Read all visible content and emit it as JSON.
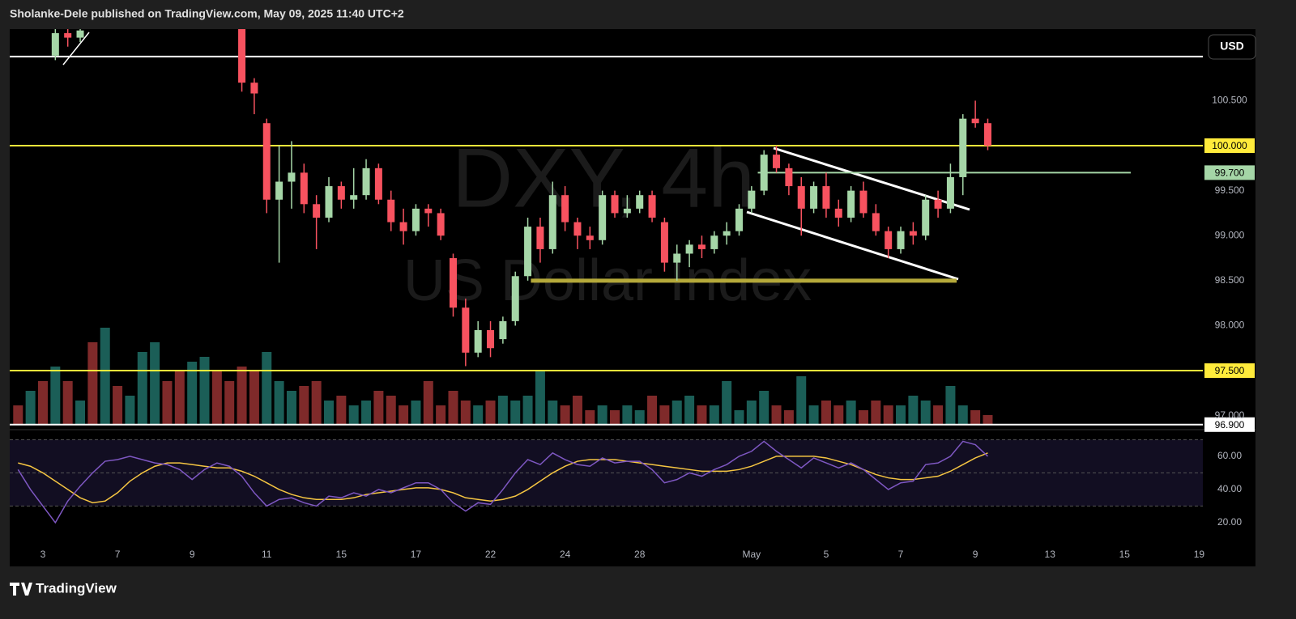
{
  "header": "Sholanke-Dele published on TradingView.com, May 09, 2025 11:40 UTC+2",
  "footer": "TradingView",
  "chart_data": {
    "type": "candlestick",
    "title": "DXY, 4h",
    "subtitle": "US Dollar Index",
    "currency": "USD",
    "up_color": "#a5d6a7",
    "down_color": "#f7525f",
    "x": [
      2,
      4,
      6,
      32,
      34,
      36,
      38,
      40,
      42,
      44,
      46,
      48,
      50,
      52,
      54,
      56,
      58,
      60,
      62,
      64,
      66,
      68,
      70,
      72,
      74,
      76,
      78,
      80,
      82,
      84,
      86,
      88,
      90,
      92,
      94,
      96,
      98,
      100,
      102,
      104,
      106,
      108,
      110,
      112,
      114,
      116,
      118,
      120,
      122,
      124,
      126,
      128,
      130,
      132,
      134,
      136,
      138,
      140,
      142,
      144,
      146,
      148,
      150,
      152
    ],
    "open": [
      101.0,
      101.25,
      101.2,
      101.3,
      100.7,
      100.25,
      99.4,
      99.6,
      99.7,
      99.35,
      99.2,
      99.55,
      99.4,
      99.45,
      99.75,
      99.4,
      99.15,
      99.05,
      99.3,
      99.25,
      98.75,
      98.2,
      97.7,
      97.95,
      97.85,
      98.05,
      98.55,
      99.1,
      98.85,
      99.45,
      99.15,
      99.0,
      98.95,
      99.45,
      99.25,
      99.3,
      99.45,
      99.15,
      98.7,
      98.8,
      98.9,
      98.85,
      99.0,
      99.05,
      99.3,
      99.5,
      99.9,
      99.75,
      99.55,
      99.3,
      99.55,
      99.3,
      99.2,
      99.5,
      99.25,
      99.05,
      98.85,
      99.05,
      99.0,
      99.4,
      99.3,
      99.65,
      100.3,
      100.25
    ],
    "high": [
      101.3,
      101.3,
      101.3,
      101.4,
      100.75,
      100.3,
      100.0,
      100.05,
      99.8,
      99.45,
      99.65,
      99.6,
      99.75,
      99.85,
      99.8,
      99.5,
      99.3,
      99.35,
      99.35,
      99.3,
      98.8,
      98.3,
      98.05,
      98.05,
      98.1,
      98.6,
      99.2,
      99.2,
      99.6,
      99.55,
      99.2,
      99.1,
      99.5,
      99.5,
      99.45,
      99.5,
      99.5,
      99.2,
      98.9,
      98.95,
      99.0,
      99.05,
      99.15,
      99.35,
      99.55,
      99.95,
      100.0,
      99.8,
      99.65,
      99.6,
      99.7,
      99.4,
      99.55,
      99.6,
      99.35,
      99.1,
      99.1,
      99.15,
      99.45,
      99.5,
      99.8,
      100.35,
      100.5,
      100.3
    ],
    "low": [
      100.95,
      101.1,
      101.15,
      100.6,
      100.35,
      99.25,
      98.7,
      99.3,
      99.25,
      98.85,
      99.15,
      99.3,
      99.3,
      99.4,
      99.35,
      99.05,
      98.9,
      99.0,
      99.1,
      98.95,
      98.1,
      97.55,
      97.65,
      97.65,
      97.8,
      98.0,
      98.5,
      98.7,
      98.8,
      99.05,
      98.85,
      98.85,
      98.9,
      99.2,
      99.2,
      99.25,
      99.15,
      98.6,
      98.5,
      98.65,
      98.75,
      98.8,
      98.9,
      99.0,
      99.25,
      99.45,
      99.7,
      99.45,
      99.0,
      99.25,
      99.2,
      99.1,
      99.15,
      99.2,
      99.0,
      98.75,
      98.8,
      98.9,
      98.95,
      99.2,
      99.25,
      99.45,
      100.2,
      99.95
    ],
    "close": [
      101.25,
      101.2,
      101.28,
      100.7,
      100.58,
      99.4,
      99.6,
      99.7,
      99.35,
      99.2,
      99.55,
      99.4,
      99.45,
      99.75,
      99.4,
      99.15,
      99.05,
      99.3,
      99.25,
      99.0,
      98.2,
      97.7,
      97.95,
      97.75,
      98.05,
      98.55,
      99.1,
      98.85,
      99.45,
      99.15,
      99.0,
      98.95,
      99.45,
      99.25,
      99.3,
      99.45,
      99.2,
      98.7,
      98.8,
      98.9,
      98.85,
      99.0,
      99.05,
      99.3,
      99.5,
      99.9,
      99.75,
      99.55,
      99.3,
      99.55,
      99.3,
      99.2,
      99.5,
      99.25,
      99.05,
      98.85,
      99.05,
      99.0,
      99.4,
      99.3,
      99.65,
      100.3,
      100.25,
      100.0
    ],
    "xlim": [
      -5.34,
      186.6
    ],
    "xticks": [
      {
        "value": 0,
        "label": "3"
      },
      {
        "value": 12,
        "label": "7"
      },
      {
        "value": 24,
        "label": "9"
      },
      {
        "value": 36,
        "label": "11"
      },
      {
        "value": 48,
        "label": "15"
      },
      {
        "value": 60,
        "label": "17"
      },
      {
        "value": 72,
        "label": "22"
      },
      {
        "value": 84,
        "label": "24"
      },
      {
        "value": 96,
        "label": "28"
      },
      {
        "value": 114,
        "label": "May"
      },
      {
        "value": 126,
        "label": "5"
      },
      {
        "value": 138,
        "label": "7"
      },
      {
        "value": 150,
        "label": "9"
      },
      {
        "value": 162,
        "label": "13"
      },
      {
        "value": 174,
        "label": "15"
      },
      {
        "value": 186,
        "label": "19"
      }
    ],
    "ylim": [
      96.853,
      101.295
    ],
    "yticks": [
      {
        "value": 100.5,
        "label": "100.500"
      },
      {
        "value": 99.5,
        "label": "99.500"
      },
      {
        "value": 99,
        "label": "99.000"
      },
      {
        "value": 98.5,
        "label": "98.500"
      },
      {
        "value": 98,
        "label": "98.000"
      },
      {
        "value": 97,
        "label": "97.000"
      }
    ],
    "grid": false,
    "levels": [
      {
        "value": 100.99,
        "color": "#ffffff"
      },
      {
        "value": 100,
        "color": "#ffeb3b",
        "label": "100.000"
      },
      {
        "value": 99.7,
        "color": "#a5d6a7",
        "label": "99.700",
        "from": 115,
        "to": 175
      },
      {
        "value": 98.5,
        "color": "#b5a93a",
        "from": 78.5,
        "to": 147,
        "style": "band"
      },
      {
        "value": 97.5,
        "color": "#ffeb3b",
        "label": "97.500"
      },
      {
        "value": 96.9,
        "color": "#ffffff",
        "label": "96.900"
      }
    ],
    "x_indicators": [
      -4,
      -2,
      0,
      2,
      4,
      6,
      8,
      10,
      12,
      14,
      16,
      18,
      20,
      22,
      24,
      26,
      28,
      30,
      32,
      34,
      36,
      38,
      40,
      42,
      44,
      46,
      48,
      50,
      52,
      54,
      56,
      58,
      60,
      62,
      64,
      66,
      68,
      70,
      72,
      74,
      76,
      78,
      80,
      82,
      84,
      86,
      88,
      90,
      92,
      94,
      96,
      98,
      100,
      102,
      104,
      106,
      108,
      110,
      112,
      114,
      116,
      118,
      120,
      122,
      124,
      126,
      128,
      130,
      132,
      134,
      136,
      138,
      140,
      142,
      144,
      146,
      148,
      150,
      152
    ],
    "volume": {
      "up_color": "#1b5e57",
      "down_color": "#7f2a2a",
      "values": [
        20,
        35,
        45,
        60,
        45,
        25,
        85,
        100,
        40,
        30,
        75,
        85,
        45,
        55,
        65,
        70,
        55,
        45,
        60,
        55,
        75,
        45,
        35,
        40,
        45,
        25,
        30,
        20,
        25,
        35,
        30,
        20,
        25,
        45,
        20,
        35,
        25,
        20,
        25,
        30,
        25,
        30,
        55,
        25,
        20,
        30,
        15,
        20,
        15,
        20,
        15,
        30,
        20,
        25,
        30,
        20,
        20,
        45,
        15,
        25,
        35,
        20,
        15,
        50,
        20,
        25,
        20,
        25,
        15,
        25,
        20,
        20,
        30,
        25,
        20,
        40,
        20,
        15,
        10
      ],
      "up": [
        0,
        1,
        0,
        1,
        0,
        1,
        0,
        1,
        0,
        1,
        1,
        1,
        0,
        0,
        1,
        1,
        0,
        0,
        0,
        0,
        1,
        1,
        1,
        0,
        0,
        1,
        0,
        1,
        1,
        0,
        0,
        0,
        1,
        0,
        0,
        0,
        0,
        1,
        0,
        1,
        1,
        1,
        1,
        1,
        0,
        0,
        0,
        1,
        0,
        1,
        1,
        0,
        0,
        1,
        1,
        0,
        1,
        1,
        1,
        1,
        1,
        0,
        0,
        1,
        1,
        0,
        0,
        1,
        0,
        0,
        0,
        1,
        1,
        1,
        0,
        1,
        1,
        0,
        0
      ]
    },
    "rsi": {
      "color": "#7e57c2",
      "ma_color": "#f5c542",
      "values": [
        52,
        40,
        30,
        20,
        33,
        42,
        50,
        57,
        58,
        60,
        58,
        56,
        55,
        52,
        46,
        52,
        56,
        54,
        48,
        38,
        30,
        34,
        35,
        32,
        30,
        36,
        35,
        38,
        36,
        40,
        38,
        41,
        44,
        44,
        40,
        32,
        27,
        32,
        31,
        40,
        50,
        58,
        55,
        62,
        58,
        55,
        54,
        59,
        56,
        57,
        57,
        52,
        44,
        46,
        50,
        48,
        52,
        55,
        60,
        63,
        69,
        63,
        58,
        53,
        59,
        56,
        53,
        56,
        52,
        46,
        40,
        44,
        45,
        55,
        56,
        60,
        69,
        67,
        60
      ],
      "ma": [
        56,
        54,
        50,
        45,
        40,
        35,
        32,
        33,
        38,
        45,
        50,
        54,
        56,
        56,
        55,
        54,
        53,
        53,
        51,
        48,
        44,
        40,
        37,
        35,
        34,
        34,
        34,
        35,
        37,
        38,
        39,
        40,
        41,
        41,
        40,
        38,
        35,
        34,
        33,
        34,
        36,
        40,
        45,
        50,
        54,
        57,
        58,
        58,
        58,
        57,
        56,
        55,
        54,
        53,
        52,
        51,
        51,
        51,
        52,
        54,
        57,
        60,
        60,
        60,
        60,
        59,
        57,
        55,
        52,
        49,
        47,
        46,
        46,
        47,
        48,
        51,
        55,
        59,
        62
      ],
      "ylim": [
        10.7,
        74.1
      ],
      "yticks": [
        {
          "value": 60,
          "label": "60.00"
        },
        {
          "value": 40,
          "label": "40.00"
        },
        {
          "value": 20,
          "label": "20.00"
        }
      ],
      "bands": [
        70,
        50,
        30
      ]
    }
  }
}
